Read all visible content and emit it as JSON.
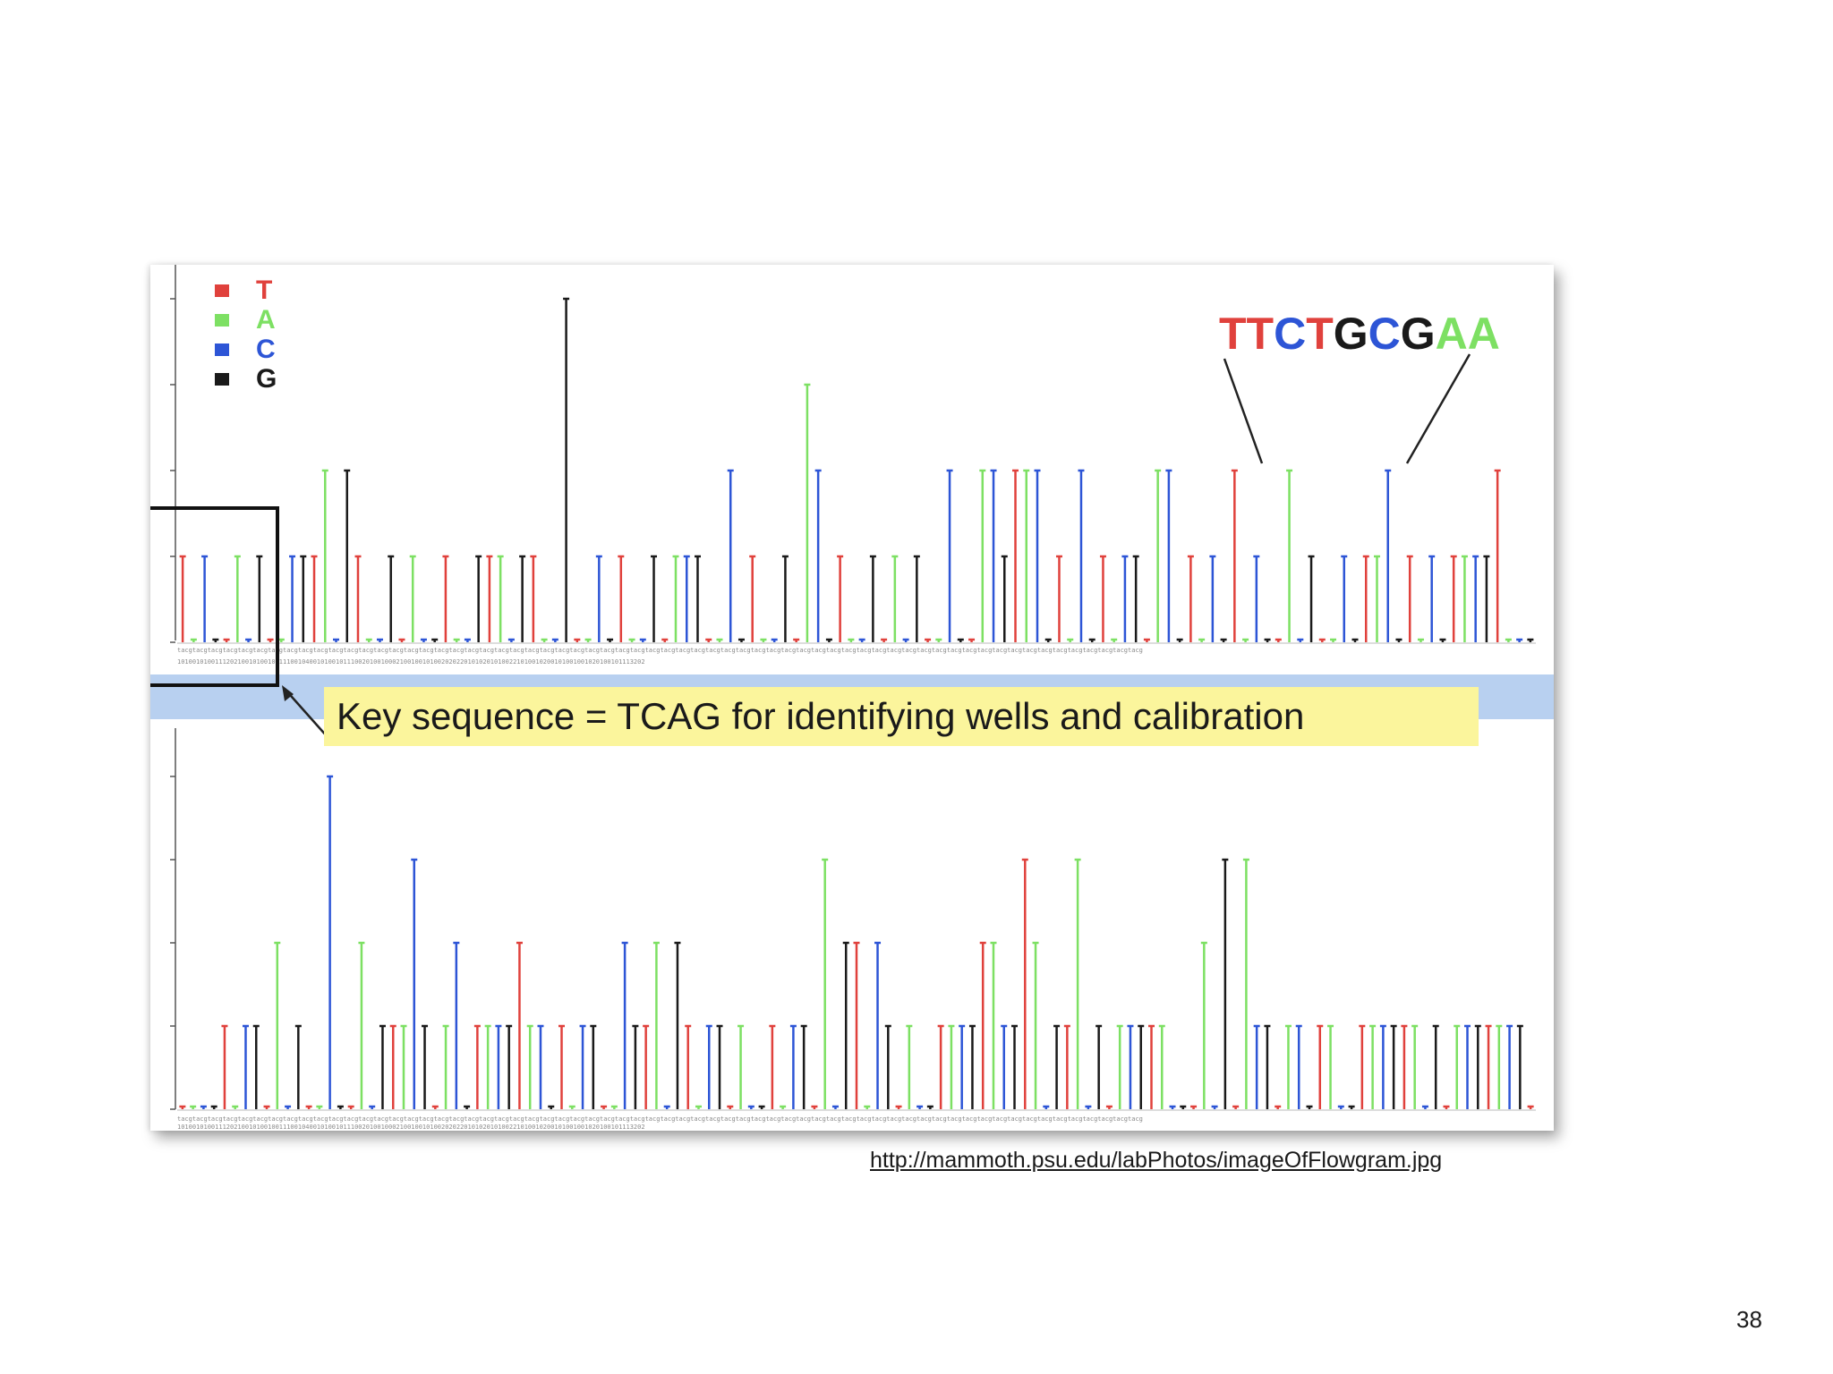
{
  "slide": {
    "page_number": "38",
    "source_url": "http://mammoth.psu.edu/labPhotos/imageOfFlowgram.jpg"
  },
  "colors": {
    "T": "#e0413c",
    "A": "#7de063",
    "C": "#2d55d6",
    "G": "#1a1a1a",
    "callout_background": "#fbf59c",
    "band": "#b8d0f0"
  },
  "figure": {
    "legend": [
      {
        "base": "T",
        "label": "T"
      },
      {
        "base": "A",
        "label": "A"
      },
      {
        "base": "C",
        "label": "C"
      },
      {
        "base": "G",
        "label": "G"
      }
    ],
    "sequence_label": [
      {
        "base": "T",
        "char": "T"
      },
      {
        "base": "T",
        "char": "T"
      },
      {
        "base": "C",
        "char": "C"
      },
      {
        "base": "T",
        "char": "T"
      },
      {
        "base": "G",
        "char": "G"
      },
      {
        "base": "C",
        "char": "C"
      },
      {
        "base": "G",
        "char": "G"
      },
      {
        "base": "A",
        "char": "A"
      },
      {
        "base": "A",
        "char": "A"
      }
    ],
    "callout": "Key sequence = TCAG for identifying wells and calibration",
    "flow_order_text": "tacgtacgtacgtacgtacgtacgtacgtacgtacgtacgtacgtacgtacgtacgtacgtacgtacgtacgtacgtacgtacgtacgtacgtacgtacgtacgtacgtacgtacgtacgtacgtacgtacgtacgtacgtacgtacgtacgtacgtacgtacgtacgtacgtacgtacgtacgtacgtacgtacgtacgtacgtacgtacgtacgtacgtacgtacgtacgtacgtacgtacgtacgtacgtacg",
    "flow_value_text": "1010010100111202100101001001110010400101001011100201001000210010010100202022010102010100221010010200101001001020100101113202"
  },
  "chart_data": [
    {
      "type": "bar",
      "name": "flowgram-top",
      "flow_order": "TACG",
      "ylim": [
        0,
        4
      ],
      "values": [
        1,
        0,
        1,
        0,
        0,
        1,
        0,
        1,
        0,
        0,
        1,
        1,
        1,
        2,
        0,
        2,
        1,
        0,
        0,
        1,
        0,
        1,
        0,
        0,
        1,
        0,
        0,
        1,
        1,
        1,
        0,
        1,
        1,
        0,
        0,
        4,
        0,
        0,
        1,
        0,
        1,
        0,
        0,
        1,
        0,
        1,
        1,
        1,
        0,
        0,
        2,
        0,
        1,
        0,
        0,
        1,
        0,
        3,
        2,
        0,
        1,
        0,
        0,
        1,
        0,
        1,
        0,
        1,
        0,
        0,
        2,
        0,
        0,
        2,
        2,
        1,
        2,
        2,
        2,
        0,
        1,
        0,
        2,
        0,
        1,
        0,
        1,
        1,
        0,
        2,
        2,
        0,
        1,
        0,
        1,
        0,
        2,
        0,
        1,
        0,
        0,
        2,
        0,
        1,
        0,
        0,
        1,
        0,
        1,
        1,
        2,
        0,
        1,
        0,
        1,
        0,
        1,
        1,
        1,
        1,
        2,
        0,
        0,
        0
      ]
    },
    {
      "type": "bar",
      "name": "flowgram-bottom",
      "flow_order": "TACG",
      "ylim": [
        0,
        4
      ],
      "values": [
        0,
        0,
        0,
        0,
        1,
        0,
        1,
        1,
        0,
        2,
        0,
        1,
        0,
        0,
        4,
        0,
        0,
        2,
        0,
        1,
        1,
        1,
        3,
        1,
        0,
        1,
        2,
        0,
        1,
        1,
        1,
        1,
        2,
        1,
        1,
        0,
        1,
        0,
        1,
        1,
        0,
        0,
        2,
        1,
        1,
        2,
        0,
        2,
        1,
        0,
        1,
        1,
        0,
        1,
        0,
        0,
        1,
        0,
        1,
        1,
        0,
        3,
        0,
        2,
        2,
        0,
        2,
        1,
        0,
        1,
        0,
        0,
        1,
        1,
        1,
        1,
        2,
        2,
        1,
        1,
        3,
        2,
        0,
        1,
        1,
        3,
        0,
        1,
        0,
        1,
        1,
        1,
        1,
        1,
        0,
        0,
        0,
        2,
        0,
        3,
        0,
        3,
        1,
        1,
        0,
        1,
        1,
        0,
        1,
        1,
        0,
        0,
        1,
        1,
        1,
        1,
        1,
        1,
        0,
        1,
        0,
        1,
        1,
        1,
        1,
        1,
        1,
        1,
        0
      ]
    }
  ]
}
